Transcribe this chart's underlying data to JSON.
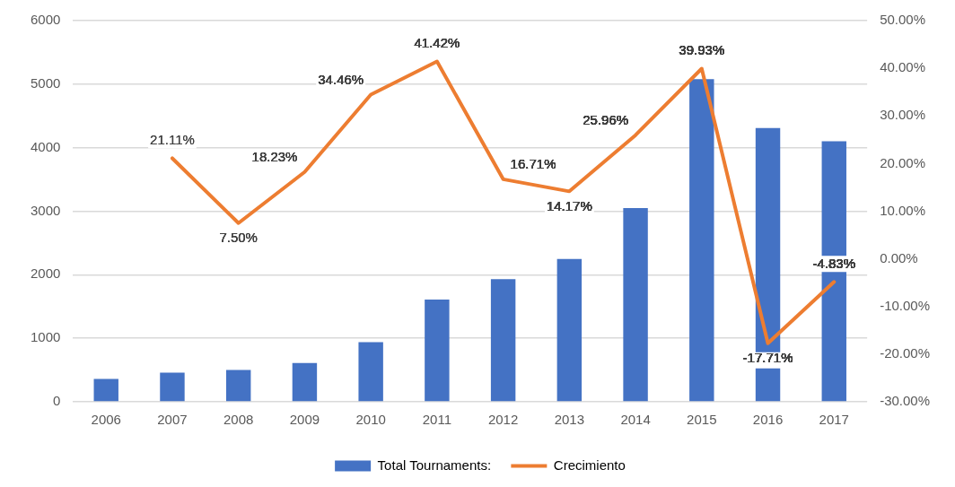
{
  "chart_data": {
    "type": "bar",
    "categories": [
      "2006",
      "2007",
      "2008",
      "2009",
      "2010",
      "2011",
      "2012",
      "2013",
      "2014",
      "2015",
      "2016",
      "2017"
    ],
    "series": [
      {
        "name": "Total Tournaments:",
        "color": "#4472c4",
        "values": [
          360,
          460,
          500,
          610,
          940,
          1610,
          1930,
          2250,
          3050,
          5080,
          4310,
          4100
        ]
      },
      {
        "name": "Crecimiento",
        "type": "line",
        "axis": "y2",
        "color": "#ed7d31",
        "values": [
          null,
          21.11,
          7.5,
          18.23,
          34.46,
          41.42,
          16.71,
          14.17,
          25.96,
          39.93,
          -17.71,
          -4.83
        ],
        "value_labels": [
          null,
          "21.11%",
          "7.50%",
          "18.23%",
          "34.46%",
          "41.42%",
          "16.71%",
          "14.17%",
          "25.96%",
          "39.93%",
          "-17.71%",
          "-4.83%"
        ]
      }
    ],
    "ylim": [
      0,
      6000
    ],
    "yticks": [
      0,
      1000,
      2000,
      3000,
      4000,
      5000,
      6000
    ],
    "y2lim": [
      -30,
      50
    ],
    "y2ticks": [
      {
        "value": -30,
        "label": "-30.00%"
      },
      {
        "value": -20,
        "label": "-20.00%"
      },
      {
        "value": -10,
        "label": "-10.00%"
      },
      {
        "value": 0,
        "label": "0.00%"
      },
      {
        "value": 10,
        "label": "10.00%"
      },
      {
        "value": 20,
        "label": "20.00%"
      },
      {
        "value": 30,
        "label": "30.00%"
      },
      {
        "value": 40,
        "label": "40.00%"
      },
      {
        "value": 50,
        "label": "50.00%"
      }
    ],
    "grid": "y",
    "legend": "bottom",
    "marker": "none",
    "line_style": "solid"
  }
}
